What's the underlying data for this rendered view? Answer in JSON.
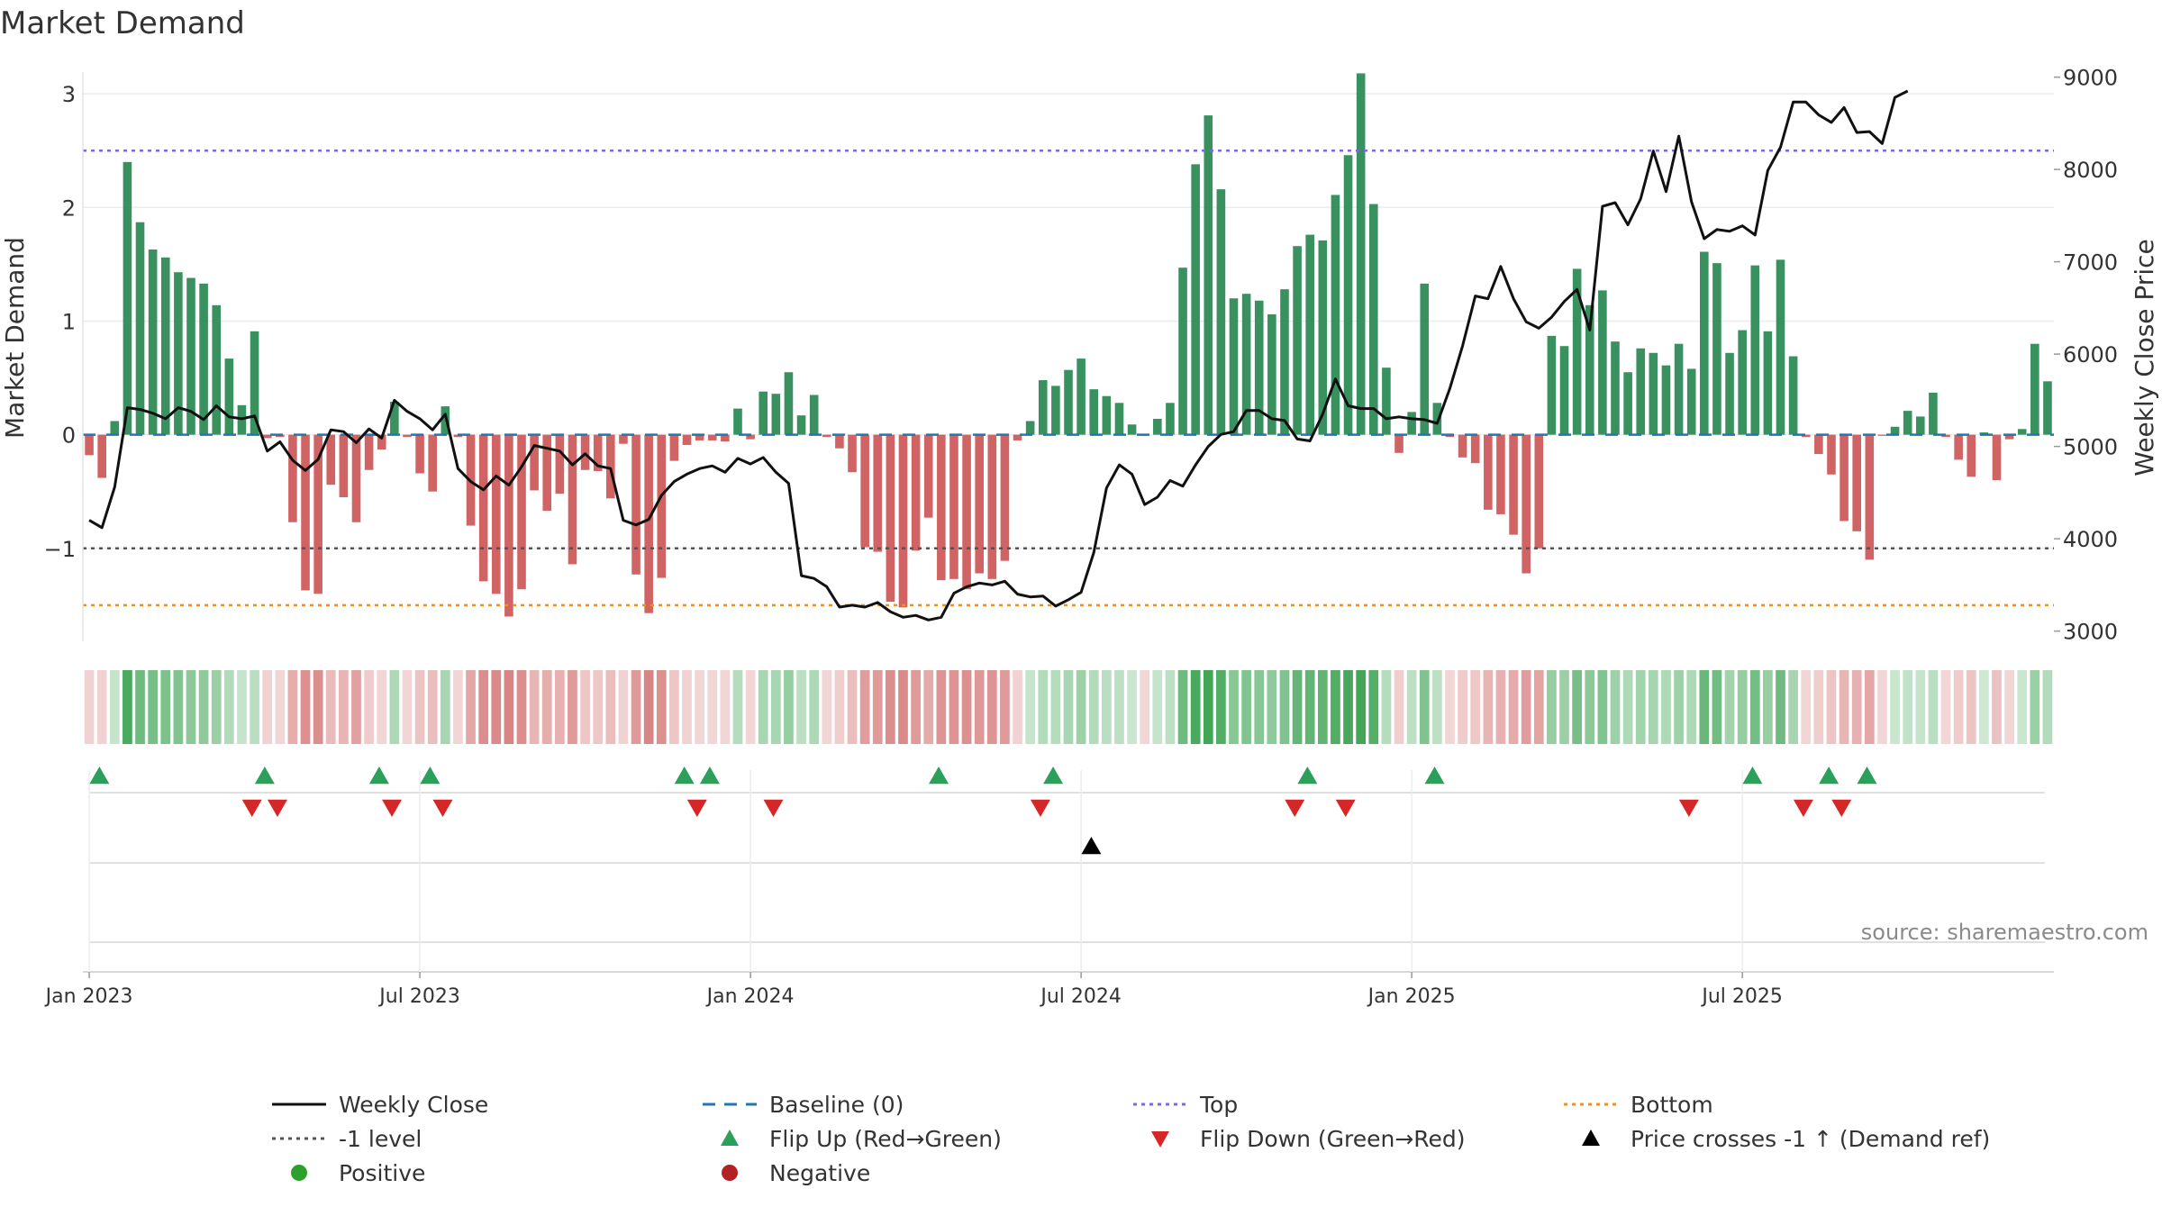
{
  "chart_data": {
    "type": "bar",
    "title": "Market Demand",
    "ylabel_left": "Market Demand",
    "ylabel_right": "Weekly Close Price",
    "xlabel": "",
    "ylim_left": [
      -1.85,
      3.35
    ],
    "ylim_right": [
      2850,
      9250
    ],
    "yticks_left": [
      {
        "value": 3,
        "label": "3"
      },
      {
        "value": 2,
        "label": "2"
      },
      {
        "value": 1,
        "label": "1"
      },
      {
        "value": 0,
        "label": "0"
      },
      {
        "value": -1,
        "label": "−1"
      }
    ],
    "yticks_right": [
      {
        "value": 9000,
        "label": "9000"
      },
      {
        "value": 8000,
        "label": "8000"
      },
      {
        "value": 7000,
        "label": "7000"
      },
      {
        "value": 6000,
        "label": "6000"
      },
      {
        "value": 5000,
        "label": "5000"
      },
      {
        "value": 4000,
        "label": "4000"
      },
      {
        "value": 3000,
        "label": "3000"
      }
    ],
    "xticks": [
      {
        "week": 0.5,
        "label": "Jan 2023"
      },
      {
        "week": 26.5,
        "label": "Jul 2023"
      },
      {
        "week": 52.5,
        "label": "Jan 2024"
      },
      {
        "week": 78.5,
        "label": "Jul 2024"
      },
      {
        "week": 104.5,
        "label": "Jan 2025"
      },
      {
        "week": 130.5,
        "label": "Jul 2025"
      }
    ],
    "reference_lines": {
      "top": 2.5,
      "bottom": -1.5,
      "minus_one": -1,
      "baseline": 0
    },
    "demand": [
      -0.18,
      -0.38,
      0.12,
      2.4,
      1.87,
      1.63,
      1.56,
      1.43,
      1.38,
      1.33,
      1.14,
      0.67,
      0.26,
      0.91,
      -0.03,
      -0.02,
      -0.77,
      -1.37,
      -1.4,
      -0.44,
      -0.55,
      -0.77,
      -0.31,
      -0.13,
      0.29,
      -0.02,
      -0.34,
      -0.5,
      0.25,
      -0.02,
      -0.8,
      -1.29,
      -1.4,
      -1.6,
      -1.36,
      -0.49,
      -0.67,
      -0.52,
      -1.14,
      -0.31,
      -0.32,
      -0.56,
      -0.08,
      -1.23,
      -1.57,
      -1.26,
      -0.23,
      -0.09,
      -0.05,
      -0.05,
      -0.06,
      0.23,
      -0.04,
      0.38,
      0.36,
      0.55,
      0.17,
      0.35,
      -0.02,
      -0.12,
      -0.33,
      -0.99,
      -1.03,
      -1.47,
      -1.52,
      -1.02,
      -0.73,
      -1.28,
      -1.27,
      -1.36,
      -1.22,
      -1.27,
      -1.11,
      -0.05,
      0.12,
      0.48,
      0.43,
      0.57,
      0.67,
      0.4,
      0.34,
      0.28,
      0.09,
      -0.01,
      0.14,
      0.28,
      1.47,
      2.38,
      2.81,
      2.16,
      1.2,
      1.24,
      1.18,
      1.06,
      1.28,
      1.66,
      1.76,
      1.71,
      2.11,
      2.46,
      3.18,
      2.03,
      0.59,
      -0.16,
      0.2,
      1.33,
      0.28,
      -0.02,
      -0.2,
      -0.25,
      -0.66,
      -0.7,
      -0.88,
      -1.22,
      -1.0,
      0.87,
      0.78,
      1.46,
      1.14,
      1.27,
      0.82,
      0.55,
      0.76,
      0.72,
      0.61,
      0.8,
      0.58,
      1.61,
      1.51,
      0.72,
      0.92,
      1.49,
      0.91,
      1.54,
      0.69,
      -0.02,
      -0.17,
      -0.35,
      -0.76,
      -0.85,
      -1.1,
      -0.01,
      0.07,
      0.21,
      0.16,
      0.37,
      -0.02,
      -0.22,
      -0.37,
      0.02,
      -0.4,
      -0.04,
      0.05,
      0.8,
      0.47
    ],
    "weekly_close": [
      4200,
      4120,
      4560,
      5420,
      5400,
      5360,
      5300,
      5420,
      5380,
      5290,
      5440,
      5320,
      5300,
      5330,
      4950,
      5050,
      4850,
      4740,
      4860,
      5180,
      5160,
      5040,
      5190,
      5090,
      5500,
      5380,
      5300,
      5180,
      5350,
      4760,
      4620,
      4530,
      4680,
      4580,
      4780,
      5010,
      4980,
      4950,
      4800,
      4920,
      4790,
      4760,
      4200,
      4150,
      4210,
      4470,
      4620,
      4700,
      4760,
      4790,
      4720,
      4870,
      4810,
      4880,
      4720,
      4600,
      3600,
      3570,
      3480,
      3260,
      3280,
      3260,
      3310,
      3210,
      3150,
      3170,
      3120,
      3150,
      3410,
      3480,
      3520,
      3500,
      3540,
      3400,
      3370,
      3380,
      3270,
      3340,
      3420,
      3850,
      4550,
      4800,
      4700,
      4370,
      4450,
      4630,
      4570,
      4800,
      5000,
      5130,
      5160,
      5390,
      5390,
      5300,
      5280,
      5080,
      5060,
      5350,
      5730,
      5440,
      5410,
      5410,
      5300,
      5320,
      5300,
      5290,
      5250,
      5630,
      6090,
      6630,
      6600,
      6950,
      6600,
      6350,
      6280,
      6400,
      6570,
      6700,
      6260,
      7600,
      7640,
      7400,
      7680,
      8200,
      7760,
      8360,
      7650,
      7250,
      7350,
      7330,
      7390,
      7290,
      7990,
      8240,
      8730,
      8730,
      8590,
      8510,
      8670,
      8400,
      8410,
      8280,
      8780,
      8850
    ],
    "strip_opacity": [
      0.28,
      0.28,
      0.3,
      0.95,
      0.75,
      0.7,
      0.68,
      0.65,
      0.6,
      0.58,
      0.52,
      0.4,
      0.3,
      0.36,
      0.28,
      0.26,
      0.5,
      0.68,
      0.7,
      0.42,
      0.45,
      0.58,
      0.32,
      0.26,
      0.42,
      0.26,
      0.36,
      0.4,
      0.45,
      0.26,
      0.55,
      0.7,
      0.72,
      0.75,
      0.7,
      0.45,
      0.5,
      0.48,
      0.62,
      0.35,
      0.34,
      0.4,
      0.28,
      0.62,
      0.75,
      0.68,
      0.35,
      0.28,
      0.25,
      0.25,
      0.26,
      0.38,
      0.26,
      0.45,
      0.45,
      0.55,
      0.35,
      0.42,
      0.26,
      0.3,
      0.4,
      0.6,
      0.62,
      0.7,
      0.72,
      0.62,
      0.52,
      0.66,
      0.66,
      0.68,
      0.64,
      0.66,
      0.62,
      0.28,
      0.3,
      0.4,
      0.38,
      0.45,
      0.5,
      0.4,
      0.36,
      0.34,
      0.28,
      0.26,
      0.3,
      0.34,
      0.75,
      0.95,
      0.98,
      0.9,
      0.62,
      0.65,
      0.62,
      0.58,
      0.66,
      0.8,
      0.82,
      0.82,
      0.9,
      0.96,
      0.98,
      0.88,
      0.38,
      0.3,
      0.34,
      0.66,
      0.34,
      0.26,
      0.32,
      0.34,
      0.45,
      0.48,
      0.52,
      0.6,
      0.56,
      0.55,
      0.52,
      0.7,
      0.6,
      0.65,
      0.5,
      0.42,
      0.48,
      0.46,
      0.42,
      0.5,
      0.42,
      0.78,
      0.74,
      0.48,
      0.55,
      0.72,
      0.55,
      0.75,
      0.46,
      0.26,
      0.3,
      0.36,
      0.45,
      0.48,
      0.55,
      0.26,
      0.28,
      0.32,
      0.3,
      0.36,
      0.26,
      0.32,
      0.36,
      0.26,
      0.38,
      0.26,
      0.28,
      0.52,
      0.4
    ],
    "flip_up_weeks": [
      1.3,
      14.3,
      23.3,
      27.3,
      47.3,
      49.3,
      67.3,
      76.3,
      96.3,
      106.3,
      131.3,
      137.3,
      140.3
    ],
    "flip_down_weeks": [
      13.3,
      15.3,
      24.3,
      28.3,
      48.3,
      54.3,
      75.3,
      95.3,
      99.3,
      126.3,
      135.3,
      138.3
    ],
    "price_cross_weeks": [
      79.3
    ],
    "legend": [
      {
        "label": "Weekly Close",
        "symbol": "solid-line",
        "color": "#111111"
      },
      {
        "label": "Baseline (0)",
        "symbol": "dashed-line",
        "color": "#1f77b4"
      },
      {
        "label": "Top",
        "symbol": "dotted-line",
        "color": "#7b68ee"
      },
      {
        "label": "Bottom",
        "symbol": "dotted-line",
        "color": "#f0901e"
      },
      {
        "label": "-1 level",
        "symbol": "dotted-line",
        "color": "#555555"
      },
      {
        "label": "Flip Up (Red→Green)",
        "symbol": "triangle-up",
        "color": "#2aa05a"
      },
      {
        "label": "Flip Down (Green→Red)",
        "symbol": "triangle-down",
        "color": "#d62728"
      },
      {
        "label": "Price crosses -1 ↑ (Demand ref)",
        "symbol": "triangle-up",
        "color": "#000000"
      },
      {
        "label": "Positive",
        "symbol": "circle",
        "color": "#2ca02c"
      },
      {
        "label": "Negative",
        "symbol": "circle",
        "color": "#b22222"
      }
    ],
    "watermark": "source: sharemaestro.com"
  },
  "colors": {
    "positive_bar": "#2e8b57",
    "negative_bar": "#cd5c5c",
    "strip_positive": "#3fa454",
    "strip_negative": "#cd5c5c",
    "flip_up": "#2aa05a",
    "flip_down": "#d62728",
    "price_cross": "#000000",
    "price_line": "#111111"
  }
}
